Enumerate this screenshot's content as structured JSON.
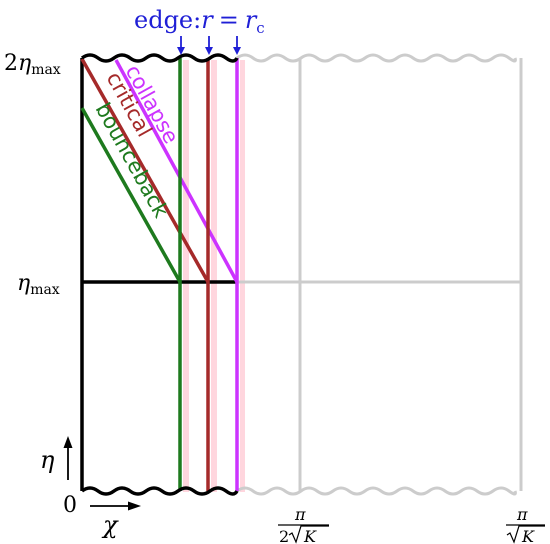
{
  "header": {
    "edge_word": "edge:",
    "edge_equation_lhs": "r",
    "edge_equation_eq": "=",
    "edge_equation_rhs": "r",
    "edge_equation_sub": "c"
  },
  "y_axis": {
    "label_top_coef": "2",
    "label_top_sym": "η",
    "label_top_sub": "max",
    "label_mid_sym": "η",
    "label_mid_sub": "max",
    "label_zero": "0",
    "arrow_label": "η"
  },
  "x_axis": {
    "arrow_label": "χ",
    "tick1_num": "π",
    "tick1_den_coef": "2",
    "tick1_den_sym": "K",
    "tick2_num": "π",
    "tick2_den_sym": "K"
  },
  "trajectories": {
    "collapse": "collapse",
    "critical": "critical",
    "bounceback": "bounceback"
  },
  "colors": {
    "collapse": "#cc33ff",
    "critical": "#a52a2a",
    "bounceback": "#1e7a1e",
    "edge_text": "#1f1fd6",
    "frame": "#000000",
    "ghost": "#cccccc",
    "pink_band": "#ffd0d8"
  }
}
